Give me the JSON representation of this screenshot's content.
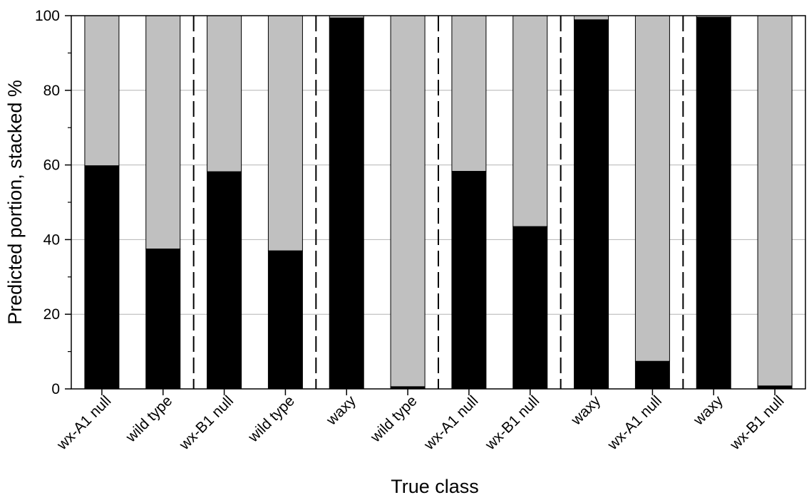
{
  "chart_data": {
    "type": "bar",
    "stacked": true,
    "categories": [
      "wx-A1 null",
      "wild type",
      "wx-B1 null",
      "wild type",
      "waxy",
      "wild type",
      "wx-A1 null",
      "wx-B1 null",
      "waxy",
      "wx-A1 null",
      "waxy",
      "wx-B1 null"
    ],
    "series": [
      {
        "name": "",
        "color": "#000000",
        "values": [
          59.8,
          37.5,
          58.2,
          37.0,
          99.4,
          0.6,
          58.3,
          43.5,
          98.9,
          7.4,
          99.6,
          0.8
        ]
      },
      {
        "name": "",
        "color": "#c0c0c0",
        "values": [
          40.2,
          62.5,
          41.8,
          63.0,
          0.6,
          99.4,
          41.7,
          56.5,
          1.1,
          92.6,
          0.4,
          99.2
        ]
      }
    ],
    "group_separators_after": [
      1,
      3,
      5,
      7,
      9
    ],
    "ylim": [
      0,
      100
    ],
    "yticks": [
      "0",
      "20",
      "40",
      "60",
      "80",
      "100"
    ],
    "ylabel": "Predicted portion, stacked %",
    "xlabel": "True class",
    "grid": "horizontal"
  }
}
